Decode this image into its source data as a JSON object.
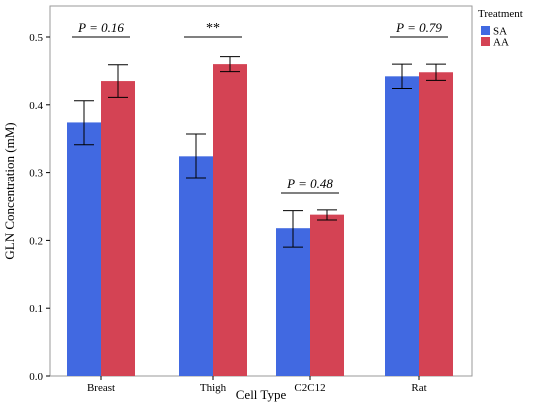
{
  "chart_data": {
    "type": "bar",
    "xlabel": "Cell Type",
    "ylabel": "GLN Concentration (mM)",
    "ylim": [
      0,
      0.55
    ],
    "yticks": [
      "0.0",
      "0.1",
      "0.2",
      "0.3",
      "0.4",
      "0.5"
    ],
    "categories": [
      "Breast",
      "Thigh",
      "C2C12",
      "Rat"
    ],
    "series": [
      {
        "name": "SA",
        "color": "#4169e1",
        "values": [
          0.374,
          0.324,
          0.218,
          0.442
        ],
        "err_low": [
          0.341,
          0.292,
          0.19,
          0.424
        ],
        "err_high": [
          0.406,
          0.357,
          0.244,
          0.46
        ]
      },
      {
        "name": "AA",
        "color": "#d44354",
        "values": [
          0.435,
          0.46,
          0.238,
          0.448
        ],
        "err_low": [
          0.411,
          0.449,
          0.23,
          0.436
        ],
        "err_high": [
          0.459,
          0.471,
          0.245,
          0.46
        ]
      }
    ],
    "legend": {
      "title": "Treatment",
      "placement": "top-right"
    },
    "annotations": [
      {
        "text": "P = 0.16",
        "category": "Breast",
        "y": 0.5,
        "style": "italic"
      },
      {
        "text": "**",
        "category": "Thigh",
        "y": 0.5,
        "style": "normal"
      },
      {
        "text": "P = 0.48",
        "category": "C2C12",
        "y": 0.27,
        "style": "italic"
      },
      {
        "text": "P = 0.79",
        "category": "Rat",
        "y": 0.5,
        "style": "italic"
      }
    ],
    "grid": false
  }
}
